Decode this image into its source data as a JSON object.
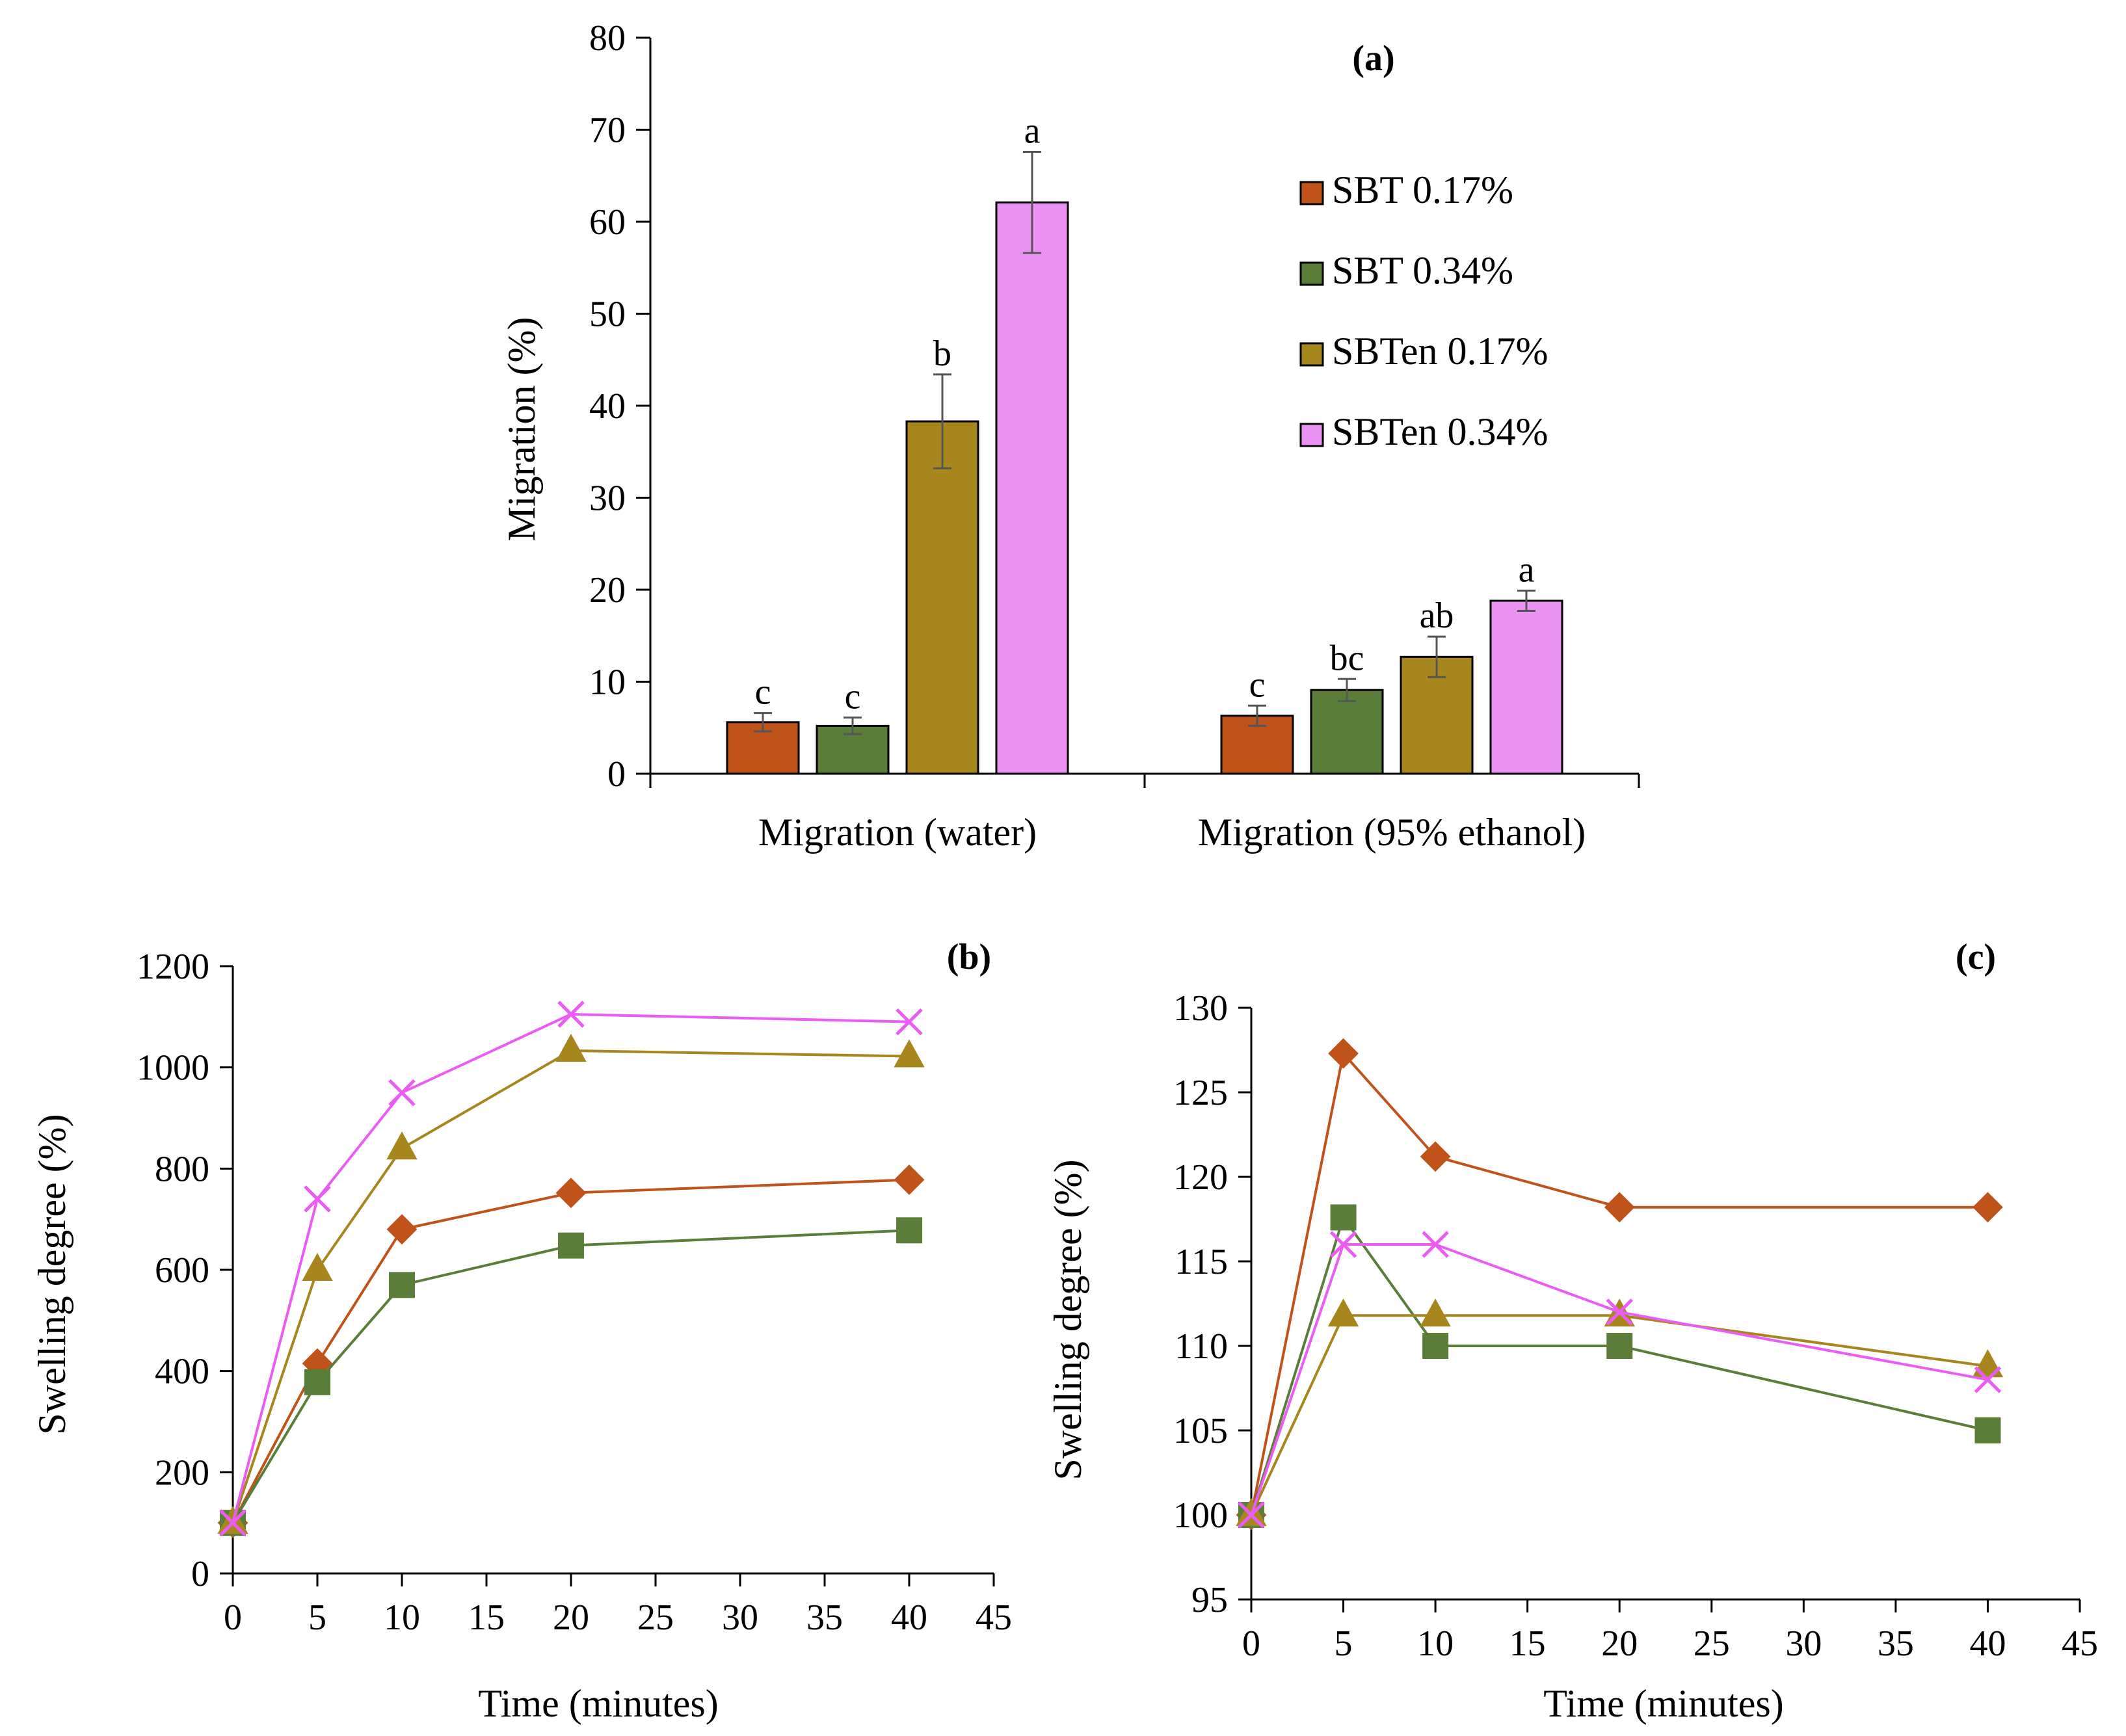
{
  "chart_data": [
    {
      "type": "bar",
      "panel": "(a)",
      "categories": [
        "Migration (water)",
        "Migration (95% ethanol)"
      ],
      "ylabel": "Migration (%)",
      "ylim": [
        0,
        80
      ],
      "yticks": [
        "0",
        "10",
        "20",
        "30",
        "40",
        "50",
        "60",
        "70",
        "80"
      ],
      "legend_position": "top-right",
      "series": [
        {
          "name": "SBT 0.17%",
          "color": "#C0531A",
          "values": [
            5.6,
            6.3
          ],
          "errors": [
            1.0,
            1.1
          ],
          "labels": [
            "c",
            "c"
          ]
        },
        {
          "name": "SBT 0.34%",
          "color": "#5A7E3A",
          "values": [
            5.2,
            9.1
          ],
          "errors": [
            0.9,
            1.2
          ],
          "labels": [
            "c",
            "bc"
          ]
        },
        {
          "name": "SBTen 0.17%",
          "color": "#A8861E",
          "values": [
            38.3,
            12.7
          ],
          "errors": [
            5.1,
            2.2
          ],
          "labels": [
            "b",
            "ab"
          ]
        },
        {
          "name": "SBTen 0.34%",
          "color": "#EB93F5",
          "values": [
            62.1,
            18.8
          ],
          "errors": [
            5.5,
            1.1
          ],
          "labels": [
            "a",
            "a"
          ]
        }
      ]
    },
    {
      "type": "line",
      "panel": "(b)",
      "xlabel": "Time (minutes)",
      "ylabel": "Swelling degree (%)",
      "xlim": [
        0,
        45
      ],
      "ylim": [
        0,
        1200
      ],
      "xticks": [
        "0",
        "5",
        "10",
        "15",
        "20",
        "25",
        "30",
        "35",
        "40",
        "45"
      ],
      "yticks": [
        "0",
        "200",
        "400",
        "600",
        "800",
        "1000",
        "1200"
      ],
      "x": [
        0,
        5,
        10,
        20,
        40
      ],
      "series": [
        {
          "name": "SBT 0.17%",
          "marker": "diamond",
          "color": "#C0531A",
          "values": [
            100,
            415,
            680,
            752,
            778
          ]
        },
        {
          "name": "SBT 0.34%",
          "marker": "square",
          "color": "#5A7E3A",
          "values": [
            100,
            378,
            570,
            648,
            678
          ]
        },
        {
          "name": "SBTen 0.17%",
          "marker": "triangle",
          "color": "#A8861E",
          "values": [
            100,
            600,
            840,
            1033,
            1022
          ]
        },
        {
          "name": "SBTen 0.34%",
          "marker": "x",
          "color": "#EB5CF5",
          "values": [
            100,
            740,
            950,
            1105,
            1090
          ]
        }
      ]
    },
    {
      "type": "line",
      "panel": "(c)",
      "xlabel": "Time (minutes)",
      "ylabel": "Swelling degree (%)",
      "xlim": [
        0,
        45
      ],
      "ylim": [
        95,
        130
      ],
      "xticks": [
        "0",
        "5",
        "10",
        "15",
        "20",
        "25",
        "30",
        "35",
        "40",
        "45"
      ],
      "yticks": [
        "95",
        "100",
        "105",
        "110",
        "115",
        "120",
        "125",
        "130"
      ],
      "x": [
        0,
        5,
        10,
        20,
        40
      ],
      "series": [
        {
          "name": "SBT 0.17%",
          "marker": "diamond",
          "color": "#C0531A",
          "values": [
            100,
            127.3,
            121.2,
            118.2,
            118.2
          ]
        },
        {
          "name": "SBT 0.34%",
          "marker": "square",
          "color": "#5A7E3A",
          "values": [
            100,
            117.6,
            110.0,
            110.0,
            105.0
          ]
        },
        {
          "name": "SBTen 0.17%",
          "marker": "triangle",
          "color": "#A8861E",
          "values": [
            100,
            111.8,
            111.8,
            111.8,
            108.8
          ]
        },
        {
          "name": "SBTen 0.34%",
          "marker": "x",
          "color": "#EB5CF5",
          "values": [
            100,
            116.0,
            116.0,
            112.0,
            108.0
          ]
        }
      ]
    }
  ]
}
